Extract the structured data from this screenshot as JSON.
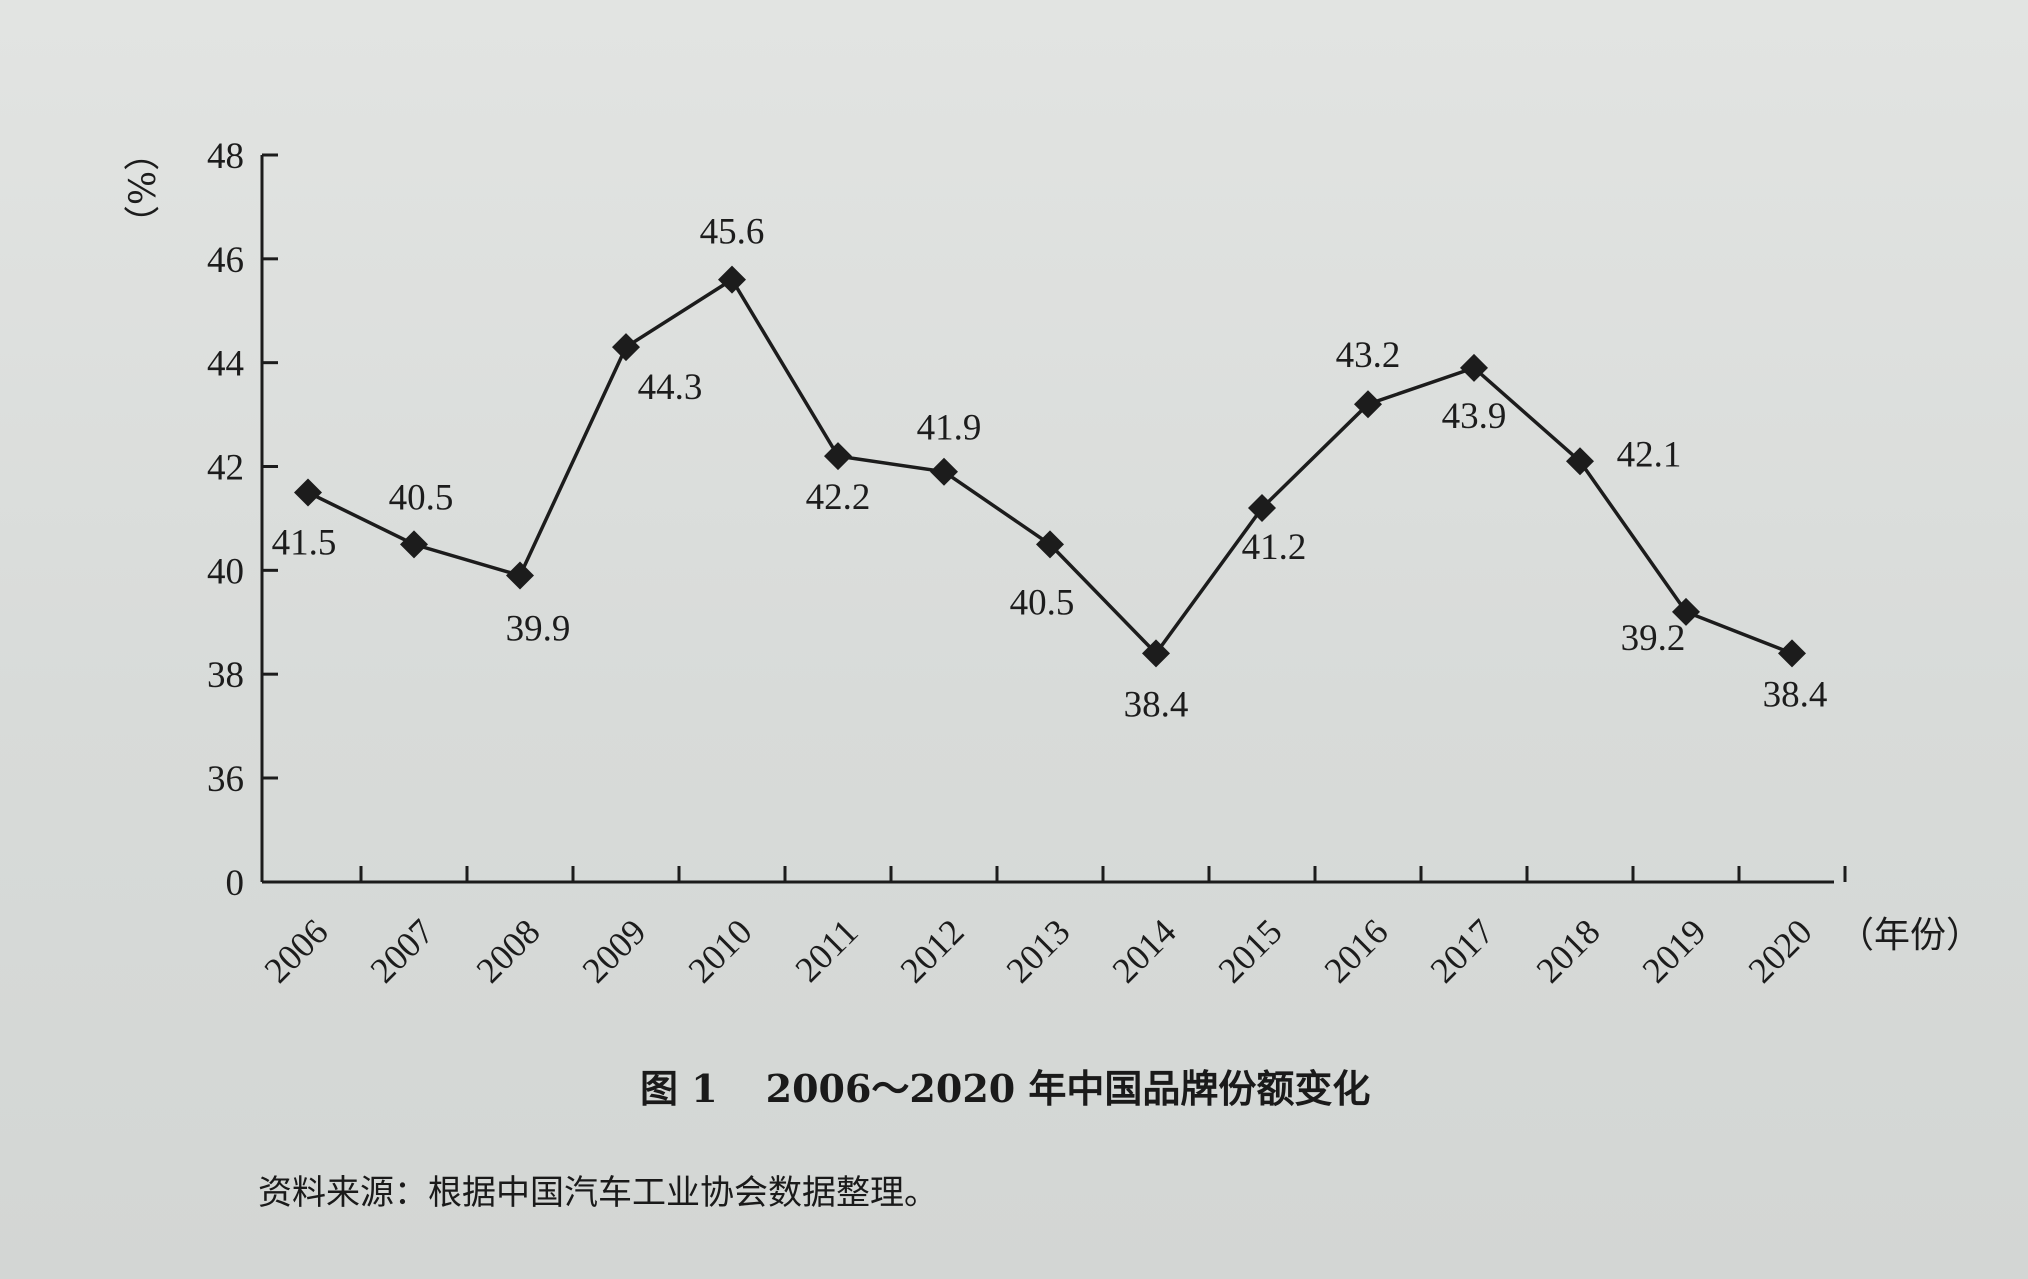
{
  "chart_data": {
    "type": "line",
    "title": "2006～2020 年中国品牌份额变化",
    "figure_number": "图 1",
    "ylabel": "（%）",
    "xlabel": "（年份）",
    "categories": [
      "2006",
      "2007",
      "2008",
      "2009",
      "2010",
      "2011",
      "2012",
      "2013",
      "2014",
      "2015",
      "2016",
      "2017",
      "2018",
      "2019",
      "2020"
    ],
    "values": [
      41.5,
      40.5,
      39.9,
      44.3,
      45.6,
      42.2,
      41.9,
      40.5,
      38.4,
      41.2,
      43.2,
      43.9,
      42.1,
      39.2,
      38.4
    ],
    "data_labels": [
      "41.5",
      "40.5",
      "39.9",
      "44.3",
      "45.6",
      "42.2",
      "41.9",
      "40.5",
      "38.4",
      "41.2",
      "43.2",
      "43.9",
      "42.1",
      "39.2",
      "38.4"
    ],
    "yticks": [
      0,
      36,
      38,
      40,
      42,
      44,
      46,
      48
    ],
    "ytick_labels": [
      "0",
      "36",
      "38",
      "40",
      "42",
      "44",
      "46",
      "48"
    ],
    "ylim": [
      34,
      48
    ],
    "axis_break": true,
    "grid": false,
    "legend": "none",
    "marker": "diamond",
    "line_color": "#1c1c1c"
  },
  "caption": {
    "figure_number": "图 1",
    "title": "2006～2020 年中国品牌份额变化"
  },
  "source_note": "资料来源：根据中国汽车工业协会数据整理。"
}
